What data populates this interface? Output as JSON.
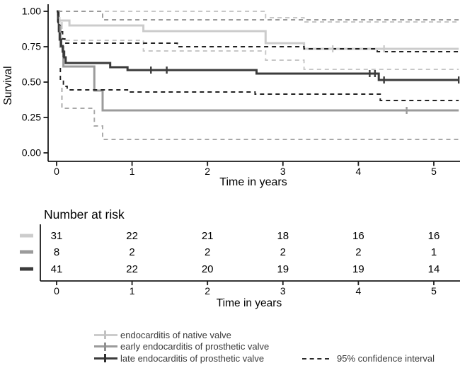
{
  "axis_color": "#1a1a1a",
  "chart_data": [
    {
      "type": "line",
      "subtype": "kaplan-meier-survival",
      "title": "",
      "xlabel": "Time in years",
      "ylabel": "Survival",
      "xlim": [
        0,
        5.33
      ],
      "ylim": [
        0,
        1.0
      ],
      "xticks": [
        0,
        1,
        2,
        3,
        4,
        5
      ],
      "ytick_values": [
        0,
        0.25,
        0.5,
        0.75,
        1.0
      ],
      "ytick_labels": [
        "0.00",
        "0.25",
        "0.50",
        "0.75",
        "1.00"
      ],
      "grid": false,
      "legend_position": "bottom",
      "series": [
        {
          "name": "endocarditis of native valve",
          "color": "#cccccc",
          "width": 3,
          "dash": null,
          "points": [
            [
              0,
              1.0
            ],
            [
              0.02,
              1.0
            ],
            [
              0.02,
              0.935
            ],
            [
              0.17,
              0.935
            ],
            [
              0.17,
              0.9
            ],
            [
              1.15,
              0.9
            ],
            [
              1.15,
              0.86
            ],
            [
              2.77,
              0.86
            ],
            [
              2.77,
              0.775
            ],
            [
              3.28,
              0.775
            ],
            [
              3.28,
              0.735
            ],
            [
              5.33,
              0.735
            ]
          ],
          "censors": [
            [
              0.04,
              0.935
            ],
            [
              0.07,
              0.9
            ],
            [
              3.66,
              0.735
            ],
            [
              4.34,
              0.735
            ]
          ]
        },
        {
          "name": "early endocarditis of prosthetic valve",
          "color": "#9b9b9b",
          "width": 3,
          "dash": null,
          "points": [
            [
              0,
              1.0
            ],
            [
              0.03,
              1.0
            ],
            [
              0.03,
              0.875
            ],
            [
              0.05,
              0.875
            ],
            [
              0.05,
              0.75
            ],
            [
              0.09,
              0.75
            ],
            [
              0.09,
              0.61
            ],
            [
              0.5,
              0.61
            ],
            [
              0.5,
              0.44
            ],
            [
              0.61,
              0.44
            ],
            [
              0.61,
              0.3
            ],
            [
              5.33,
              0.3
            ]
          ],
          "censors": [
            [
              0.05,
              0.875
            ],
            [
              4.64,
              0.3
            ]
          ]
        },
        {
          "name": "late endocarditis of prosthetic valve",
          "color": "#3b3b3b",
          "width": 3,
          "dash": null,
          "points": [
            [
              0,
              1.0
            ],
            [
              0.02,
              1.0
            ],
            [
              0.02,
              0.93
            ],
            [
              0.03,
              0.93
            ],
            [
              0.03,
              0.86
            ],
            [
              0.04,
              0.86
            ],
            [
              0.04,
              0.8
            ],
            [
              0.06,
              0.8
            ],
            [
              0.06,
              0.755
            ],
            [
              0.08,
              0.755
            ],
            [
              0.08,
              0.715
            ],
            [
              0.1,
              0.715
            ],
            [
              0.1,
              0.675
            ],
            [
              0.12,
              0.675
            ],
            [
              0.12,
              0.635
            ],
            [
              0.71,
              0.635
            ],
            [
              0.71,
              0.605
            ],
            [
              0.94,
              0.605
            ],
            [
              0.94,
              0.585
            ],
            [
              2.65,
              0.585
            ],
            [
              2.65,
              0.56
            ],
            [
              4.27,
              0.56
            ],
            [
              4.27,
              0.515
            ],
            [
              5.33,
              0.515
            ]
          ],
          "censors": [
            [
              0.09,
              0.7
            ],
            [
              1.25,
              0.585
            ],
            [
              1.46,
              0.585
            ],
            [
              4.15,
              0.56
            ],
            [
              4.22,
              0.56
            ],
            [
              4.34,
              0.515
            ],
            [
              5.33,
              0.515
            ]
          ]
        },
        {
          "name": "95% CI upper - native valve",
          "color": "#c7c7c7",
          "width": 1.9,
          "dash": "6 5",
          "points": [
            [
              0.02,
              1.0
            ],
            [
              2.77,
              1.0
            ],
            [
              2.77,
              0.955
            ],
            [
              3.28,
              0.955
            ],
            [
              3.28,
              0.925
            ],
            [
              5.33,
              0.925
            ]
          ],
          "censors": []
        },
        {
          "name": "95% CI lower - native valve",
          "color": "#c7c7c7",
          "width": 1.9,
          "dash": "6 5",
          "points": [
            [
              0.12,
              0.795
            ],
            [
              1.15,
              0.795
            ],
            [
              1.15,
              0.72
            ],
            [
              2.77,
              0.72
            ],
            [
              2.77,
              0.655
            ],
            [
              3.28,
              0.655
            ],
            [
              3.28,
              0.59
            ],
            [
              5.33,
              0.59
            ]
          ],
          "censors": []
        },
        {
          "name": "95% CI upper - early prosthetic valve",
          "color": "#9b9b9b",
          "width": 1.9,
          "dash": "6 5",
          "points": [
            [
              0.02,
              1.0
            ],
            [
              0.61,
              1.0
            ],
            [
              0.61,
              0.94
            ],
            [
              5.33,
              0.94
            ]
          ],
          "censors": []
        },
        {
          "name": "95% CI lower - early prosthetic valve",
          "color": "#a8a8a8",
          "width": 1.9,
          "dash": "6 5",
          "points": [
            [
              0.07,
              0.46
            ],
            [
              0.07,
              0.315
            ],
            [
              0.5,
              0.315
            ],
            [
              0.5,
              0.19
            ],
            [
              0.61,
              0.19
            ],
            [
              0.61,
              0.095
            ],
            [
              5.33,
              0.095
            ]
          ],
          "censors": []
        },
        {
          "name": "95% CI upper - late prosthetic valve",
          "color": "#222222",
          "width": 1.9,
          "dash": "6 5",
          "points": [
            [
              0.02,
              1.0
            ],
            [
              0.02,
              0.92
            ],
            [
              0.05,
              0.92
            ],
            [
              0.05,
              0.855
            ],
            [
              0.08,
              0.855
            ],
            [
              0.08,
              0.805
            ],
            [
              0.11,
              0.805
            ],
            [
              0.11,
              0.775
            ],
            [
              1.6,
              0.775
            ],
            [
              1.6,
              0.75
            ],
            [
              3.28,
              0.75
            ],
            [
              3.28,
              0.735
            ],
            [
              4.25,
              0.735
            ],
            [
              4.25,
              0.715
            ],
            [
              5.33,
              0.715
            ]
          ],
          "censors": []
        },
        {
          "name": "95% CI lower - late prosthetic valve",
          "color": "#222222",
          "width": 1.9,
          "dash": "6 5",
          "points": [
            [
              0.05,
              0.6
            ],
            [
              0.05,
              0.52
            ],
            [
              0.09,
              0.52
            ],
            [
              0.09,
              0.47
            ],
            [
              0.14,
              0.47
            ],
            [
              0.14,
              0.445
            ],
            [
              0.94,
              0.445
            ],
            [
              0.94,
              0.43
            ],
            [
              2.63,
              0.43
            ],
            [
              2.63,
              0.415
            ],
            [
              4.29,
              0.415
            ],
            [
              4.29,
              0.37
            ],
            [
              5.33,
              0.37
            ]
          ],
          "censors": []
        }
      ]
    },
    {
      "type": "table",
      "title": "Number at risk",
      "xlabel": "Time in years",
      "x": [
        0,
        1,
        2,
        3,
        4,
        5
      ],
      "rows": [
        {
          "name": "endocarditis of native valve",
          "color": "#cccccc",
          "values": [
            31,
            22,
            21,
            18,
            16,
            16
          ]
        },
        {
          "name": "early endocarditis of prosthetic valve",
          "color": "#9b9b9b",
          "values": [
            8,
            2,
            2,
            2,
            2,
            1
          ]
        },
        {
          "name": "late endocarditis of prosthetic valve",
          "color": "#3b3b3b",
          "values": [
            41,
            22,
            20,
            19,
            19,
            14
          ]
        }
      ]
    }
  ],
  "legend": {
    "items": [
      {
        "label": "endocarditis of native valve",
        "color": "#cccccc",
        "cross_color": "#c2c2c2"
      },
      {
        "label": "early endocarditis of prosthetic valve",
        "color": "#9b9b9b",
        "cross_color": "#8f8f8f"
      },
      {
        "label": "late endocarditis of prosthetic valve",
        "color": "#3b3b3b",
        "cross_color": "#2e2e2e"
      }
    ],
    "ci_item": {
      "label": "95% confidence interval",
      "color": "#2a2a2a"
    }
  }
}
